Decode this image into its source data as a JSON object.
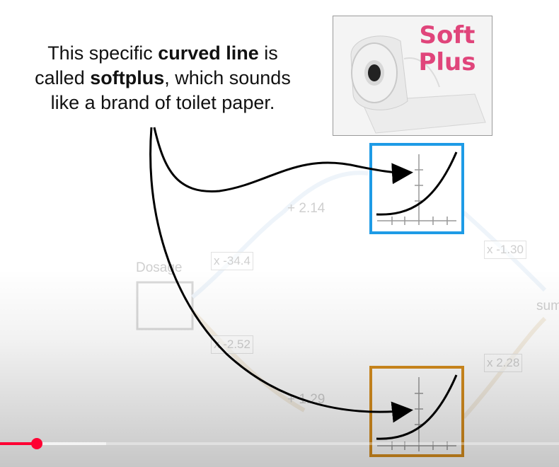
{
  "caption": {
    "line1_pre": "This specific ",
    "line1_bold": "curved line",
    "line1_post": " is",
    "line2_pre": "called ",
    "line2_bold": "softplus",
    "line2_post": ", which sounds",
    "line3": "like a brand of toilet paper."
  },
  "product": {
    "brand_line1": "Soft",
    "brand_line2": "Plus",
    "brand_color": "#e0457b"
  },
  "network": {
    "input_label": "Dosage",
    "output_label": "sum",
    "weight_top": "x -34.4",
    "bias_top": "+ 2.14",
    "weight_bottom": "x -2.52",
    "bias_bottom": "+ 1.29",
    "out_weight_top": "x -1.30",
    "out_weight_bottom": "x 2.28",
    "top_box_color": "#1e9be6",
    "bottom_box_color": "#d88f1f"
  },
  "player": {
    "progress_fraction": 0.066,
    "buffered_fraction": 0.19,
    "accent": "#ff0033"
  }
}
